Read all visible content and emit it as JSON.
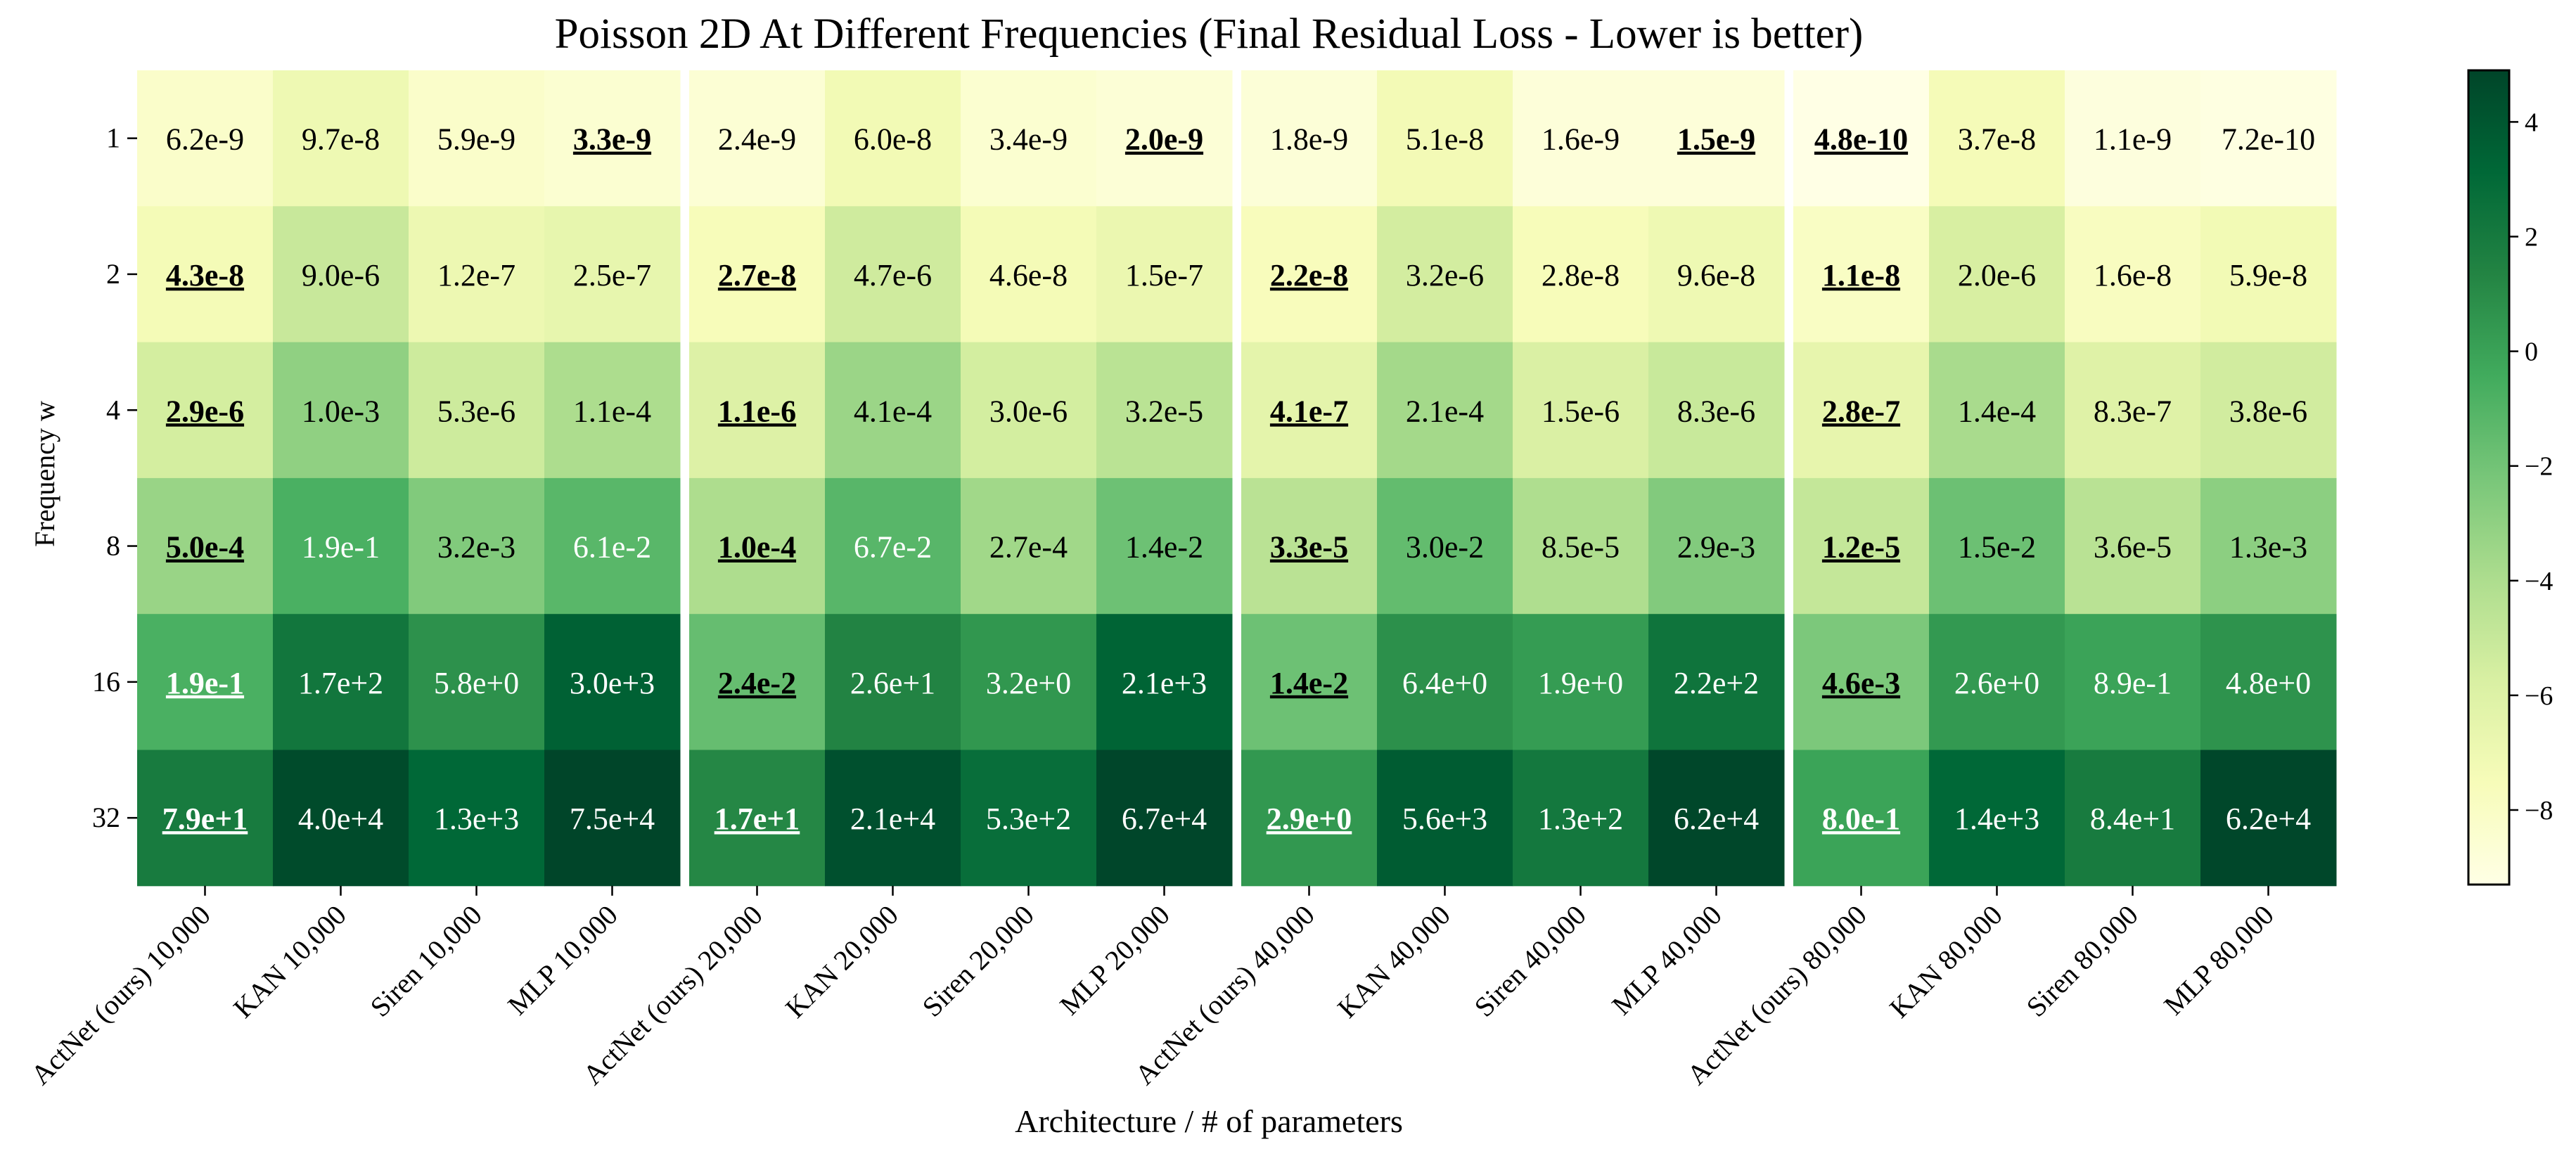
{
  "chart_data": {
    "type": "heatmap",
    "title": "Poisson 2D At Different Frequencies (Final Residual Loss - Lower is better)",
    "xlabel": "Architecture / # of parameters",
    "ylabel": "Frequency w",
    "y_categories": [
      "1",
      "2",
      "4",
      "8",
      "16",
      "32"
    ],
    "x_categories": [
      "ActNet (ours) 10,000",
      "KAN 10,000",
      "Siren 10,000",
      "MLP 10,000",
      "ActNet (ours) 20,000",
      "KAN 20,000",
      "Siren 20,000",
      "MLP 20,000",
      "ActNet (ours) 40,000",
      "KAN 40,000",
      "Siren 40,000",
      "MLP 40,000",
      "ActNet (ours) 80,000",
      "KAN 80,000",
      "Siren 80,000",
      "MLP 80,000"
    ],
    "cell_labels": [
      [
        "6.2e-9",
        "9.7e-8",
        "5.9e-9",
        "3.3e-9",
        "2.4e-9",
        "6.0e-8",
        "3.4e-9",
        "2.0e-9",
        "1.8e-9",
        "5.1e-8",
        "1.6e-9",
        "1.5e-9",
        "4.8e-10",
        "3.7e-8",
        "1.1e-9",
        "7.2e-10"
      ],
      [
        "4.3e-8",
        "9.0e-6",
        "1.2e-7",
        "2.5e-7",
        "2.7e-8",
        "4.7e-6",
        "4.6e-8",
        "1.5e-7",
        "2.2e-8",
        "3.2e-6",
        "2.8e-8",
        "9.6e-8",
        "1.1e-8",
        "2.0e-6",
        "1.6e-8",
        "5.9e-8"
      ],
      [
        "2.9e-6",
        "1.0e-3",
        "5.3e-6",
        "1.1e-4",
        "1.1e-6",
        "4.1e-4",
        "3.0e-6",
        "3.2e-5",
        "4.1e-7",
        "2.1e-4",
        "1.5e-6",
        "8.3e-6",
        "2.8e-7",
        "1.4e-4",
        "8.3e-7",
        "3.8e-6"
      ],
      [
        "5.0e-4",
        "1.9e-1",
        "3.2e-3",
        "6.1e-2",
        "1.0e-4",
        "6.7e-2",
        "2.7e-4",
        "1.4e-2",
        "3.3e-5",
        "3.0e-2",
        "8.5e-5",
        "2.9e-3",
        "1.2e-5",
        "1.5e-2",
        "3.6e-5",
        "1.3e-3"
      ],
      [
        "1.9e-1",
        "1.7e+2",
        "5.8e+0",
        "3.0e+3",
        "2.4e-2",
        "2.6e+1",
        "3.2e+0",
        "2.1e+3",
        "1.4e-2",
        "6.4e+0",
        "1.9e+0",
        "2.2e+2",
        "4.6e-3",
        "2.6e+0",
        "8.9e-1",
        "4.8e+0"
      ],
      [
        "7.9e+1",
        "4.0e+4",
        "1.3e+3",
        "7.5e+4",
        "1.7e+1",
        "2.1e+4",
        "5.3e+2",
        "6.7e+4",
        "2.9e+0",
        "5.6e+3",
        "1.3e+2",
        "6.2e+4",
        "8.0e-1",
        "1.4e+3",
        "8.4e+1",
        "6.2e+4"
      ]
    ],
    "best_in_group": [
      [
        3,
        7,
        11,
        12
      ],
      [
        0,
        4,
        8,
        12
      ],
      [
        0,
        4,
        8,
        12
      ],
      [
        0,
        4,
        8,
        12
      ],
      [
        0,
        4,
        8,
        12
      ],
      [
        0,
        4,
        8,
        12
      ]
    ],
    "colorbar": {
      "scale": "log10",
      "range": [
        -9.3,
        4.9
      ],
      "ticks": [
        4,
        2,
        0,
        -2,
        -4,
        -6,
        -8
      ],
      "tick_labels": [
        "4",
        "2",
        "0",
        "−2",
        "−4",
        "−6",
        "−8"
      ]
    },
    "colormap": [
      "#ffffe5",
      "#f7fcb9",
      "#d9f0a3",
      "#addd8e",
      "#78c679",
      "#41ab5d",
      "#238443",
      "#006837",
      "#004529"
    ],
    "grid": false,
    "legend": "none"
  }
}
